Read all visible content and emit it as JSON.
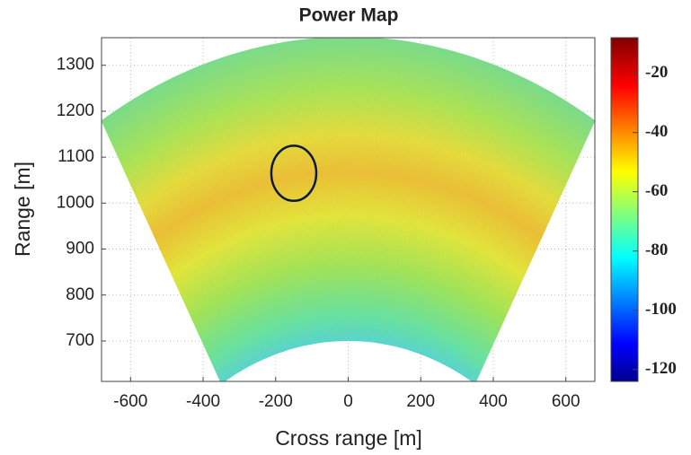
{
  "chart_data": {
    "type": "sector-map",
    "title": "Power Map",
    "x_label": "Cross range [m]",
    "y_label": "Range [m]",
    "xlim": [
      -680,
      680
    ],
    "ylim": [
      612,
      1360
    ],
    "xticks": [
      -600,
      -400,
      -200,
      0,
      200,
      400,
      600
    ],
    "yticks": [
      700,
      800,
      900,
      1000,
      1100,
      1200,
      1300
    ],
    "grid": true,
    "sector": {
      "r": [
        700,
        1362
      ],
      "angle": [
        -30,
        30
      ]
    },
    "annotation_ellipse": {
      "center": [
        -150,
        1065
      ],
      "radii": [
        62,
        60
      ],
      "color": "#0b1a3a"
    },
    "colorbar": {
      "clim": [
        -124,
        -8
      ],
      "ticks": [
        -20,
        -40,
        -60,
        -80,
        -100,
        -120
      ],
      "colormap": "jet"
    }
  }
}
